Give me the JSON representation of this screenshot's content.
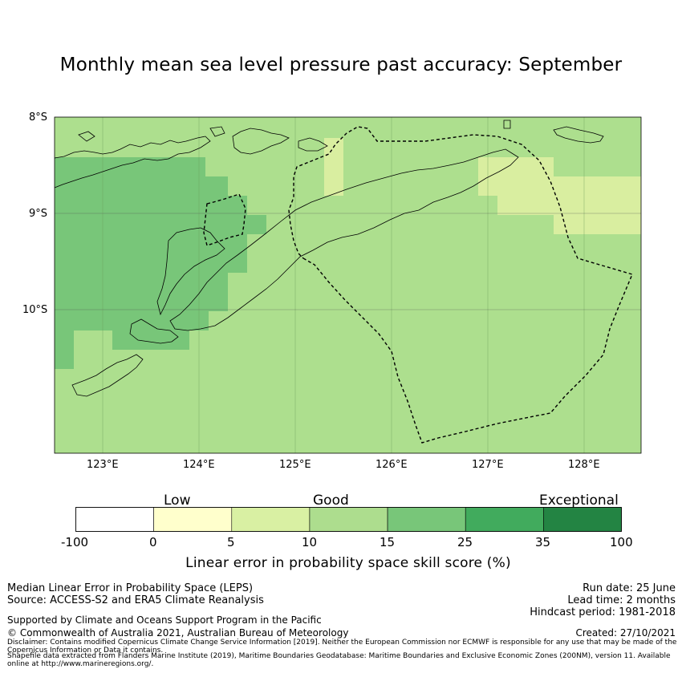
{
  "title": "Monthly mean sea level pressure past accuracy: September",
  "map": {
    "lat_labels": [
      "8°S",
      "9°S",
      "10°S"
    ],
    "lon_labels": [
      "123°E",
      "124°E",
      "125°E",
      "126°E",
      "127°E",
      "128°E"
    ],
    "extent": {
      "lon": [
        122.5,
        128.6
      ],
      "lat": [
        -11.5,
        -8.0
      ]
    },
    "cell_colors": {
      "low": "#fffecb",
      "good_5_10": "#d9eea0",
      "good_10_15": "#addf8e",
      "good_15_25": "#78c679",
      "coast": "#000000",
      "eez": "#000000"
    },
    "gridlines": true
  },
  "colorbar": {
    "categories": [
      "Low",
      "Good",
      "Exceptional"
    ],
    "ticks": [
      "-100",
      "0",
      "5",
      "10",
      "15",
      "25",
      "35",
      "100"
    ],
    "colors": [
      "#ffffff",
      "#ffffcc",
      "#d9f0a3",
      "#addd8e",
      "#78c679",
      "#41ab5d",
      "#238443"
    ],
    "label": "Linear error in probability space skill score (%)"
  },
  "footer": {
    "method": "Median Linear Error in Probability Space (LEPS)",
    "source": "Source: ACCESS-S2 and ERA5 Climate Reanalysis",
    "supported": "Supported by Climate and Oceans Support Program in the Pacific",
    "copyright": "© Commonwealth of Australia 2021, Australian Bureau of Meteorology",
    "run_date": "Run date: 25 June",
    "lead_time": "Lead time: 2 months",
    "hindcast": "Hindcast period: 1981-2018",
    "created": "Created: 27/10/2021",
    "disclaimer": "Disclaimer: Contains modified Copernicus Climate Change Service Information [2019]. Neither the European Commission nor ECMWF is responsible for any use that may be made of the Copernicus Information or Data it contains.",
    "shapefile": "Shapefile data extracted from Flanders Marine Institute (2019), Maritime Boundaries Geodatabase: Maritime Boundaries and Exclusive Economic Zones (200NM), version 11. Available online at http://www.marineregions.org/."
  }
}
